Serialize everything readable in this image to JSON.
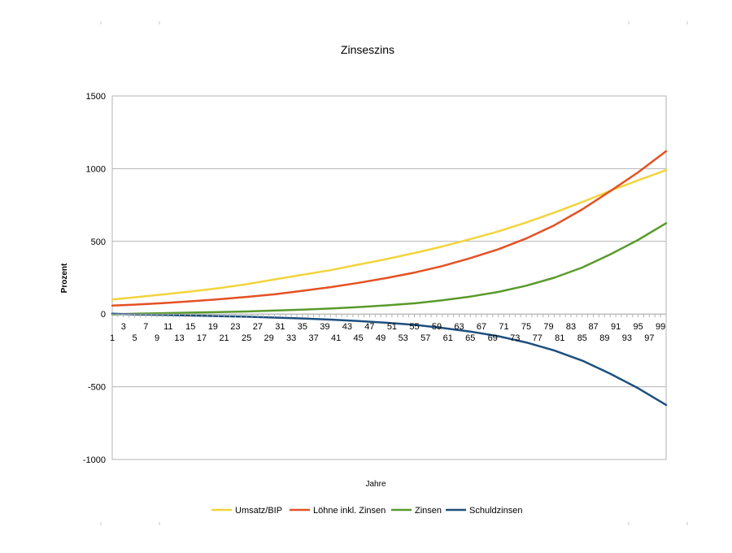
{
  "chart_data": {
    "type": "line",
    "title": "Zinseszins",
    "xlabel": "Jahre",
    "ylabel": "Prozent",
    "ylim": [
      -1000,
      1500
    ],
    "yticks": [
      1500,
      1000,
      500,
      0,
      -500,
      -1000
    ],
    "xlim": [
      1,
      100
    ],
    "xticks_odd": [
      1,
      3,
      5,
      7,
      9,
      11,
      13,
      15,
      17,
      19,
      21,
      23,
      25,
      27,
      29,
      31,
      33,
      35,
      37,
      39,
      41,
      43,
      45,
      47,
      49,
      51,
      53,
      55,
      57,
      59,
      61,
      63,
      65,
      67,
      69,
      71,
      73,
      75,
      77,
      79,
      81,
      83,
      85,
      87,
      89,
      91,
      93,
      95,
      97,
      99
    ],
    "grid": "horizontal",
    "legend_position": "bottom",
    "x": [
      1,
      5,
      10,
      15,
      20,
      25,
      30,
      35,
      40,
      45,
      50,
      55,
      60,
      65,
      70,
      75,
      80,
      85,
      90,
      95,
      100
    ],
    "series": [
      {
        "name": "Umsatz/BIP",
        "color": "#f2d43c",
        "values": [
          100,
          115,
          135,
          155,
          178,
          205,
          238,
          270,
          302,
          340,
          378,
          420,
          465,
          515,
          568,
          630,
          698,
          770,
          848,
          920,
          990
        ]
      },
      {
        "name": "Löhne inkl. Zinsen",
        "color": "#e45123",
        "values": [
          58,
          65,
          75,
          88,
          102,
          118,
          136,
          160,
          185,
          215,
          248,
          285,
          330,
          385,
          445,
          520,
          610,
          720,
          845,
          975,
          1120
        ]
      },
      {
        "name": "Zinsen",
        "color": "#5a9a2c",
        "values": [
          -2,
          2,
          6,
          10,
          14,
          18,
          24,
          30,
          38,
          48,
          60,
          74,
          95,
          120,
          152,
          195,
          250,
          320,
          410,
          510,
          625
        ]
      },
      {
        "name": "Schuldzinsen",
        "color": "#1d4f7e",
        "values": [
          2,
          -2,
          -6,
          -10,
          -14,
          -18,
          -24,
          -30,
          -38,
          -48,
          -60,
          -74,
          -95,
          -120,
          -152,
          -195,
          -250,
          -320,
          -410,
          -510,
          -625
        ]
      }
    ]
  }
}
